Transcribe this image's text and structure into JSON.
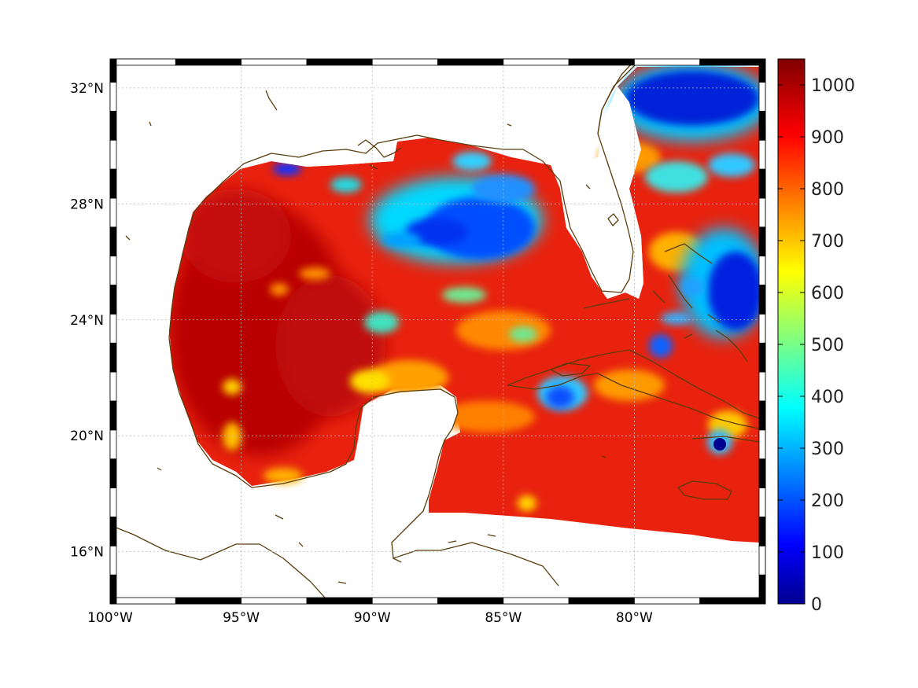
{
  "map": {
    "lon_range": [
      -100,
      -75
    ],
    "lat_range": [
      14.2,
      33
    ],
    "lon_ticks": [
      {
        "value": -100,
        "label": "100°W"
      },
      {
        "value": -95,
        "label": "95°W"
      },
      {
        "value": -90,
        "label": "90°W"
      },
      {
        "value": -85,
        "label": "85°W"
      },
      {
        "value": -80,
        "label": "80°W"
      }
    ],
    "lat_ticks": [
      {
        "value": 16,
        "label": "16°N"
      },
      {
        "value": 20,
        "label": "20°N"
      },
      {
        "value": 24,
        "label": "24°N"
      },
      {
        "value": 28,
        "label": "28°N"
      },
      {
        "value": 32,
        "label": "32°N"
      }
    ],
    "grid": true,
    "coastline_color": "#5a3d0c",
    "colormap": "jet",
    "field_range": [
      0,
      1050
    ]
  },
  "colorbar": {
    "ticks": [
      {
        "value": 0,
        "label": "0"
      },
      {
        "value": 100,
        "label": "100"
      },
      {
        "value": 200,
        "label": "200"
      },
      {
        "value": 300,
        "label": "300"
      },
      {
        "value": 400,
        "label": "400"
      },
      {
        "value": 500,
        "label": "500"
      },
      {
        "value": 600,
        "label": "600"
      },
      {
        "value": 700,
        "label": "700"
      },
      {
        "value": 800,
        "label": "800"
      },
      {
        "value": 900,
        "label": "900"
      },
      {
        "value": 1000,
        "label": "1000"
      }
    ]
  },
  "field_features": [
    {
      "name": "western-gulf-high",
      "lon": -95.5,
      "lat": 23.5,
      "value": 1000
    },
    {
      "name": "central-gulf-low",
      "lon": -87.0,
      "lat": 27.2,
      "value": 150
    },
    {
      "name": "atlantic-north-low",
      "lon": -77.0,
      "lat": 31.5,
      "value": 80
    },
    {
      "name": "bahamas-low",
      "lon": -76.0,
      "lat": 25.5,
      "value": 100
    },
    {
      "name": "cuba-south-low",
      "lon": -83.0,
      "lat": 21.2,
      "value": 300
    },
    {
      "name": "cayman-low",
      "lon": -77.7,
      "lat": 19.8,
      "value": 60
    },
    {
      "name": "mid-gulf-patch",
      "lon": -89.5,
      "lat": 24.0,
      "value": 450
    },
    {
      "name": "caribbean-south",
      "lon": -80.0,
      "lat": 18.0,
      "value": 880
    }
  ]
}
